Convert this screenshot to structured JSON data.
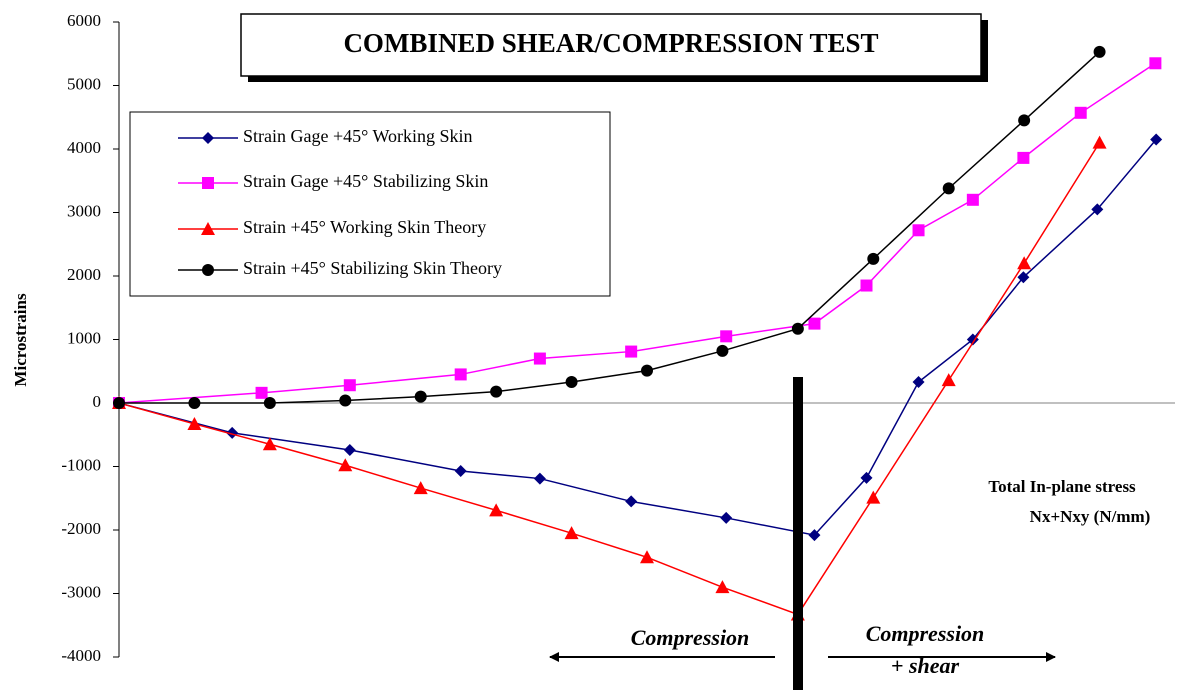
{
  "chart_data": {
    "type": "line",
    "title": "COMBINED SHEAR/COMPRESSION TEST",
    "y_label": "Microstrains",
    "annotations": [
      "Total In-plane stress",
      "Nx+Nxy (N/mm)",
      "Compression",
      "Compression",
      "+ shear"
    ],
    "xlim": [
      0,
      14
    ],
    "ylim": [
      -4000,
      6000
    ],
    "yticks": [
      -4000,
      -3000,
      -2000,
      -1000,
      0,
      1000,
      2000,
      3000,
      4000,
      5000,
      6000
    ],
    "series": [
      {
        "name": "Strain Gage +45° Working Skin",
        "color": "#000080",
        "marker": "diamond",
        "x": [
          0,
          1.5,
          3.06,
          4.53,
          5.58,
          6.79,
          8.05,
          9.22,
          9.91,
          10.6,
          11.32,
          11.99,
          12.97,
          13.75
        ],
        "values": [
          0,
          -470,
          -740,
          -1070,
          -1190,
          -1550,
          -1810,
          -2080,
          -1180,
          330,
          1000,
          1980,
          3050,
          4150
        ]
      },
      {
        "name": "Strain Gage +45° Stabilizing Skin",
        "color": "#ff00ff",
        "marker": "square",
        "x": [
          0,
          1.89,
          3.06,
          4.53,
          5.58,
          6.79,
          8.05,
          9.22,
          9.91,
          10.6,
          11.32,
          11.99,
          12.75,
          13.74
        ],
        "values": [
          0,
          160,
          280,
          450,
          700,
          810,
          1050,
          1250,
          1850,
          2720,
          3200,
          3860,
          4570,
          5350
        ]
      },
      {
        "name": "Strain +45° Working Skin Theory",
        "color": "#ff0000",
        "marker": "triangle",
        "x": [
          0,
          1,
          2,
          3,
          4,
          5,
          6,
          7,
          8,
          9,
          10,
          11,
          12,
          13
        ],
        "values": [
          0,
          -330,
          -650,
          -980,
          -1340,
          -1690,
          -2050,
          -2430,
          -2900,
          -3330,
          -1490,
          360,
          2200,
          4100
        ]
      },
      {
        "name": "Strain +45° Stabilizing Skin Theory",
        "color": "#000000",
        "marker": "circle",
        "x": [
          0,
          1,
          2,
          3,
          4,
          5,
          6,
          7,
          8,
          9,
          10,
          11,
          12,
          13
        ],
        "values": [
          0,
          0,
          0,
          40,
          100,
          180,
          330,
          510,
          820,
          1170,
          2270,
          3380,
          4450,
          5530
        ]
      }
    ]
  }
}
